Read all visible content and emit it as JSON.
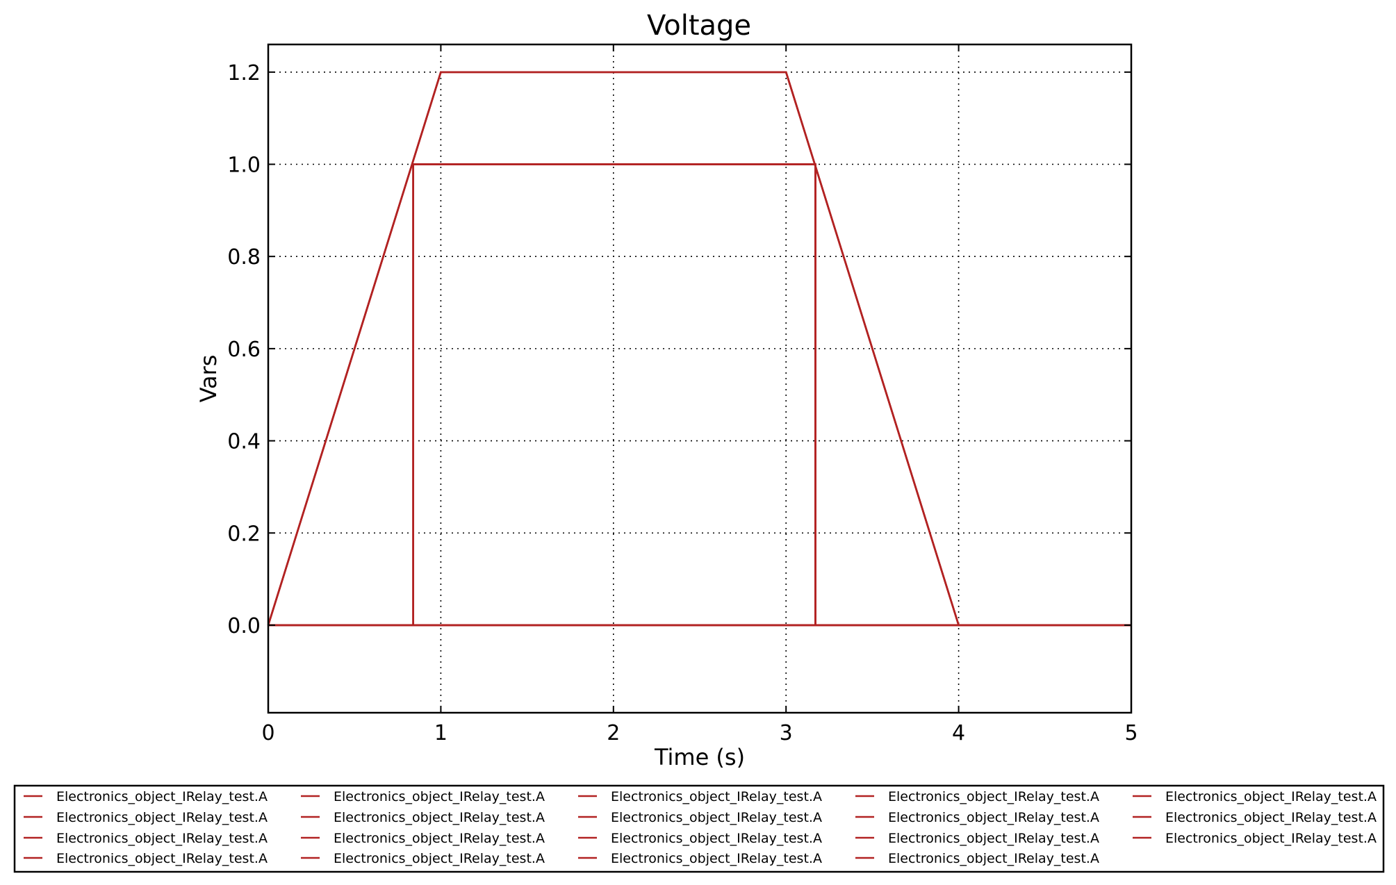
{
  "chart_data": {
    "type": "line",
    "title": "Voltage",
    "xlabel": "Time (s)",
    "ylabel": "Vars",
    "xlim": [
      0,
      5
    ],
    "ylim": [
      -0.19,
      1.26
    ],
    "xticks": [
      0,
      1,
      2,
      3,
      4,
      5
    ],
    "yticks": [
      0.0,
      0.2,
      0.4,
      0.6,
      0.8,
      1.0,
      1.2
    ],
    "xtick_labels": [
      "0",
      "1",
      "2",
      "3",
      "4",
      "5"
    ],
    "ytick_labels": [
      "0.0",
      "0.2",
      "0.4",
      "0.6",
      "0.8",
      "1.0",
      "1.2"
    ],
    "grid": true,
    "legend_placement": "below plot, 5 columns",
    "line_color": "#b22222",
    "series": [
      {
        "name": "Electronics_object_IRelay_test.A",
        "x": [
          0,
          1,
          3,
          4,
          5
        ],
        "y": [
          0,
          1.2,
          1.2,
          0,
          0
        ]
      },
      {
        "name": "Electronics_object_IRelay_test.A",
        "x": [
          0,
          0.84,
          0.84,
          3.17,
          3.17,
          5
        ],
        "y": [
          0,
          0,
          1,
          1,
          0,
          0
        ]
      },
      {
        "name": "Electronics_object_IRelay_test.A",
        "x": [
          0,
          1,
          3,
          4,
          5
        ],
        "y": [
          0,
          1.2,
          1.2,
          0,
          0
        ]
      },
      {
        "name": "Electronics_object_IRelay_test.A",
        "x": [
          0,
          0.84,
          0.84,
          3.17,
          3.17,
          5
        ],
        "y": [
          0,
          0,
          1,
          1,
          0,
          0
        ]
      },
      {
        "name": "Electronics_object_IRelay_test.A",
        "x": [
          0,
          1,
          3,
          4,
          5
        ],
        "y": [
          0,
          1.2,
          1.2,
          0,
          0
        ]
      },
      {
        "name": "Electronics_object_IRelay_test.A",
        "x": [
          0,
          0.84,
          0.84,
          3.17,
          3.17,
          5
        ],
        "y": [
          0,
          0,
          1,
          1,
          0,
          0
        ]
      },
      {
        "name": "Electronics_object_IRelay_test.A",
        "x": [
          0,
          1,
          3,
          4,
          5
        ],
        "y": [
          0,
          1.2,
          1.2,
          0,
          0
        ]
      },
      {
        "name": "Electronics_object_IRelay_test.A",
        "x": [
          0,
          0.84,
          0.84,
          3.17,
          3.17,
          5
        ],
        "y": [
          0,
          0,
          1,
          1,
          0,
          0
        ]
      },
      {
        "name": "Electronics_object_IRelay_test.A",
        "x": [
          0,
          5
        ],
        "y": [
          0,
          0
        ]
      },
      {
        "name": "Electronics_object_IRelay_test.A",
        "x": [
          0,
          5
        ],
        "y": [
          0,
          0
        ]
      },
      {
        "name": "Electronics_object_IRelay_test.A",
        "x": [
          0,
          5
        ],
        "y": [
          0,
          0
        ]
      },
      {
        "name": "Electronics_object_IRelay_test.A",
        "x": [
          0,
          5
        ],
        "y": [
          0,
          0
        ]
      },
      {
        "name": "Electronics_object_IRelay_test.A",
        "x": [
          0,
          5
        ],
        "y": [
          0,
          0
        ]
      },
      {
        "name": "Electronics_object_IRelay_test.A",
        "x": [
          0,
          5
        ],
        "y": [
          0,
          0
        ]
      },
      {
        "name": "Electronics_object_IRelay_test.A",
        "x": [
          0,
          5
        ],
        "y": [
          0,
          0
        ]
      },
      {
        "name": "Electronics_object_IRelay_test.A",
        "x": [
          0,
          5
        ],
        "y": [
          0,
          0
        ]
      },
      {
        "name": "Electronics_object_IRelay_test.A",
        "x": [
          0,
          5
        ],
        "y": [
          0,
          0
        ]
      },
      {
        "name": "Electronics_object_IRelay_test.A",
        "x": [
          0,
          5
        ],
        "y": [
          0,
          0
        ]
      },
      {
        "name": "Electronics_object_IRelay_test.A",
        "x": [
          0,
          5
        ],
        "y": [
          0,
          0
        ]
      }
    ]
  }
}
